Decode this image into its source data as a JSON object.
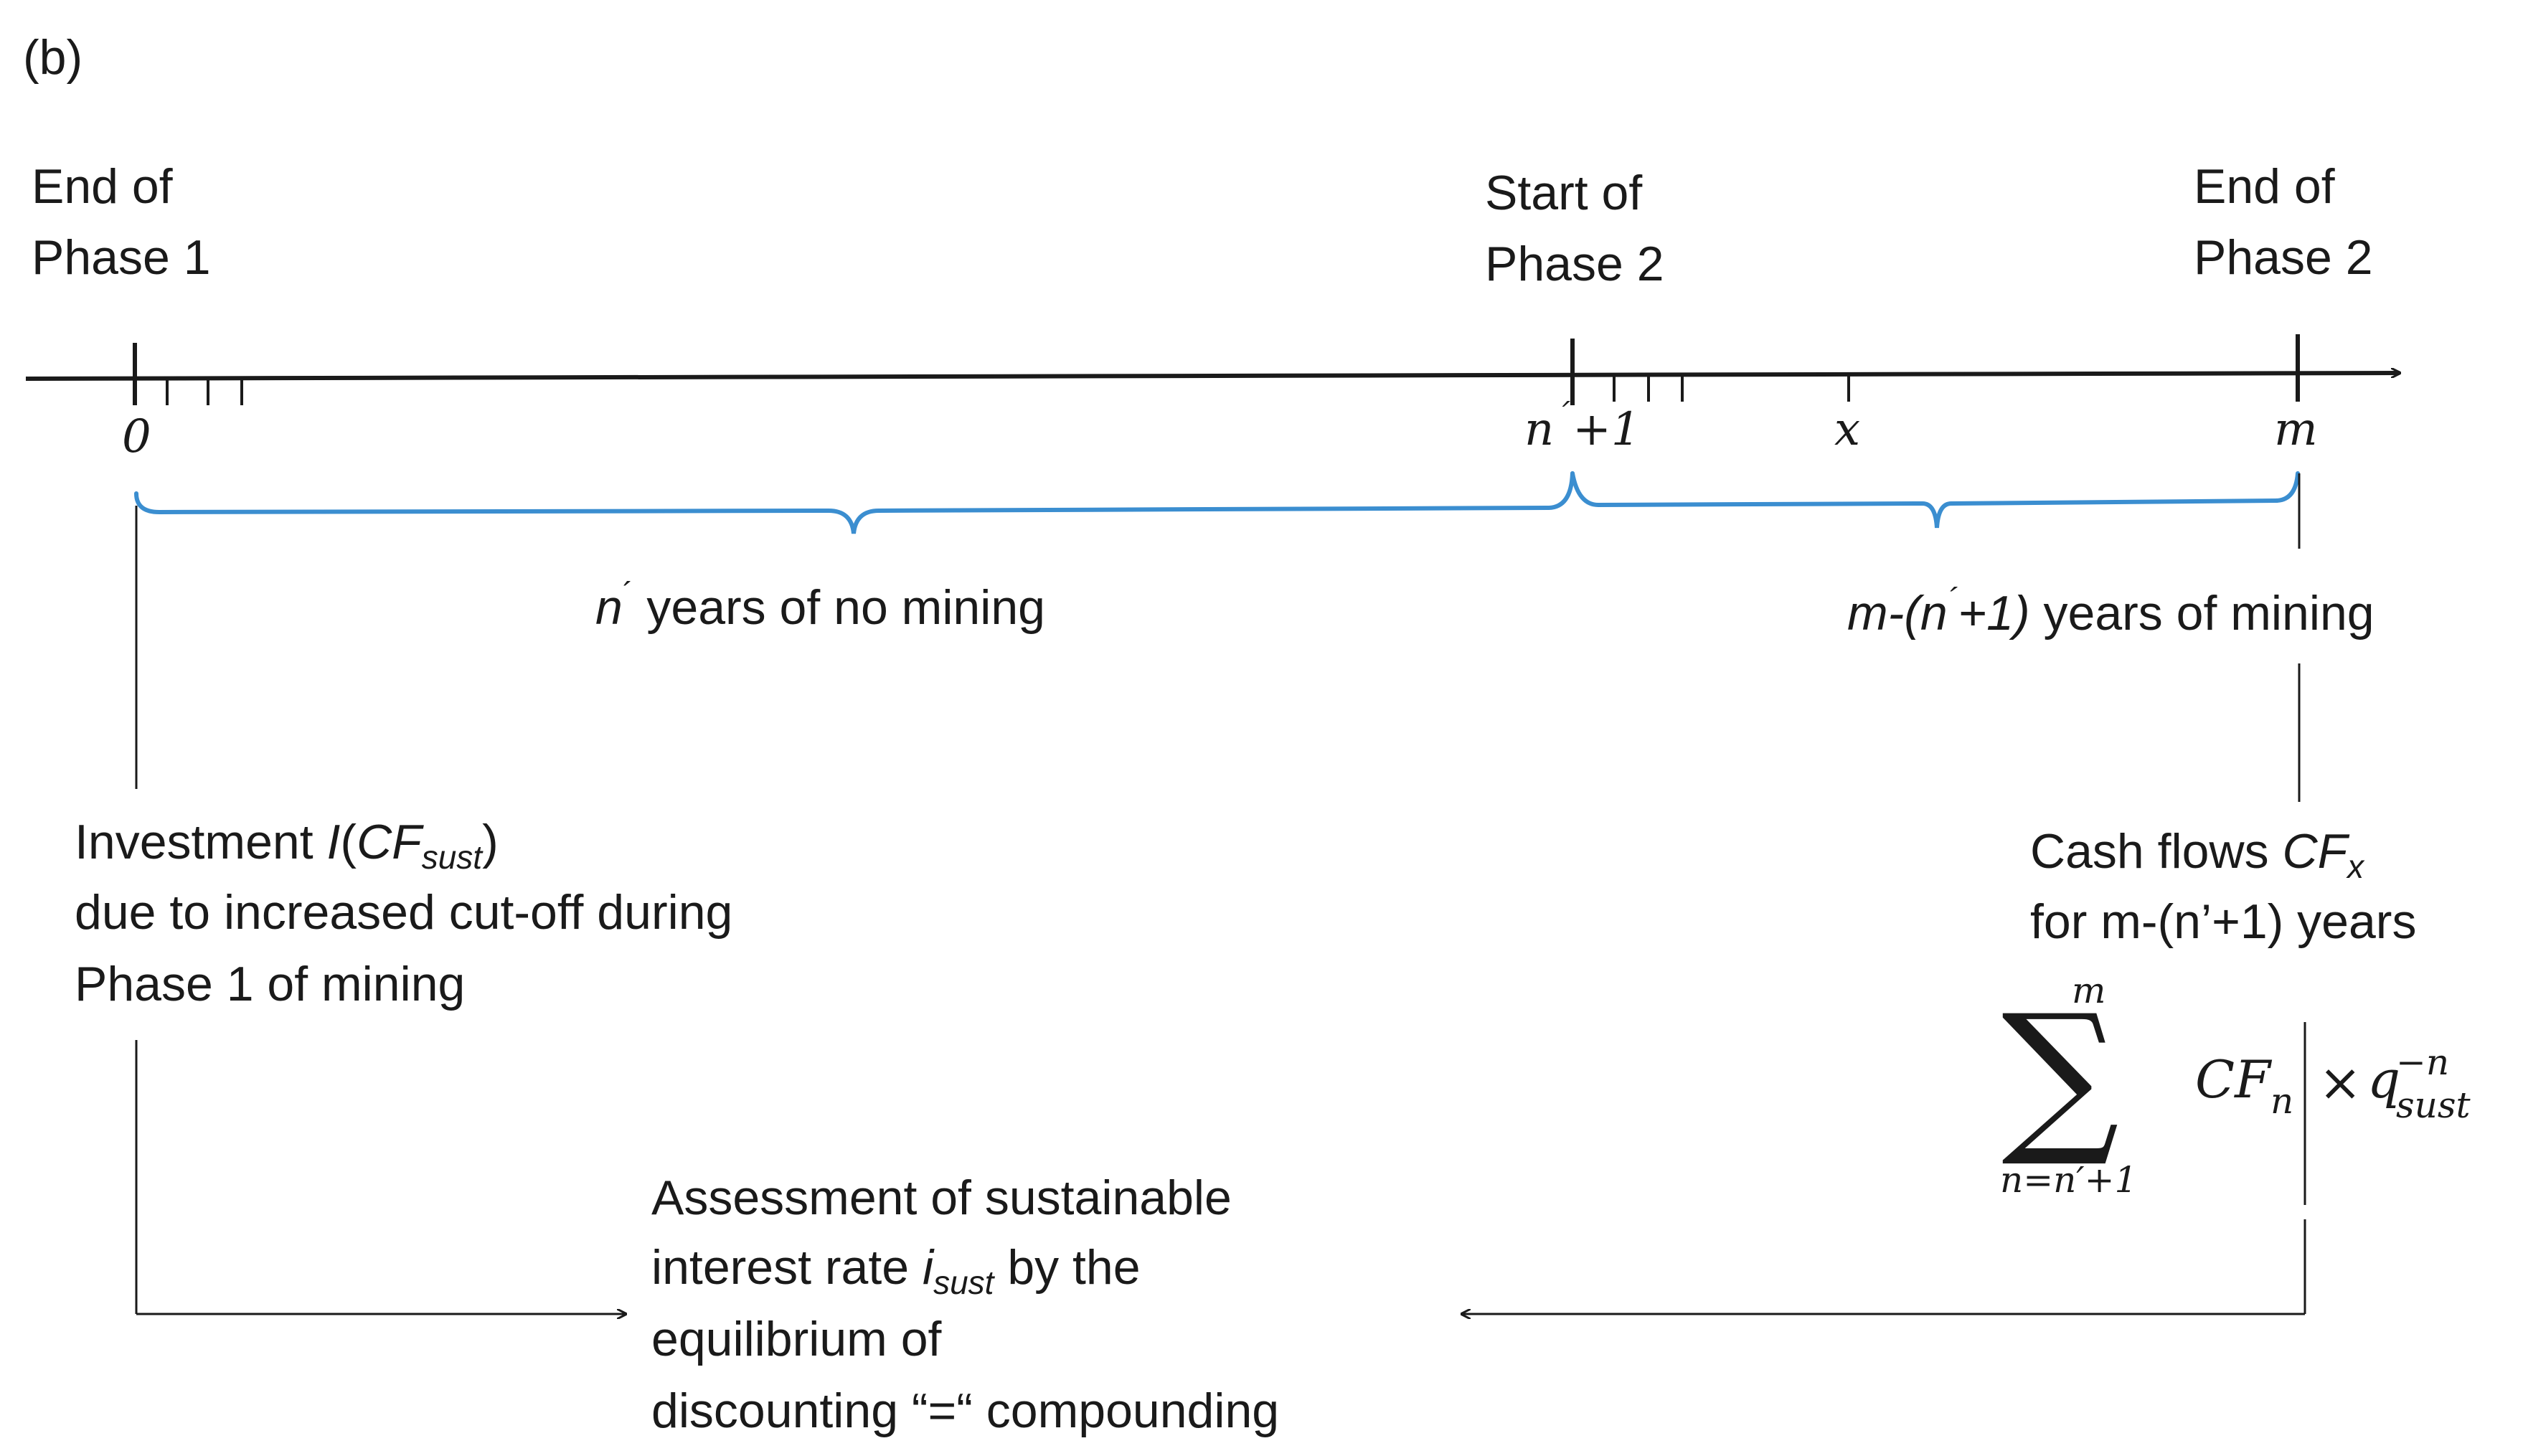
{
  "panel_label": "(b)",
  "milestones": {
    "end_phase1": [
      "End of",
      "Phase 1"
    ],
    "start_phase2": [
      "Start of",
      "Phase 2"
    ],
    "end_phase2": [
      "End of",
      "Phase 2"
    ]
  },
  "axis_labels": {
    "zero": "0",
    "n_prime_sym": "n",
    "n_prime_mark": "´",
    "n_prime_suffix": "+1",
    "x": "x",
    "m": "m"
  },
  "brace_labels": {
    "no_mining_sym": "n",
    "no_mining_mark": "´",
    "no_mining_text": " years of no mining",
    "mining_prefix": "m-(n",
    "mining_mark": "´",
    "mining_suffix": "+1)",
    "mining_text": " years of mining"
  },
  "investment": {
    "line1_text": "Investment ",
    "line1_I": "I",
    "line1_paren_open": "(",
    "line1_CF": "CF",
    "line1_sub": "sust",
    "line1_paren_close": ")",
    "line2": "due to increased cut-off during",
    "line3": "Phase 1 of mining"
  },
  "cashflows": {
    "line1_text": "Cash flows ",
    "line1_CF": "CF",
    "line1_sub": "x",
    "line2": "for m-(n’+1) years"
  },
  "formula": {
    "sigma": "∑",
    "upper": "m",
    "lower": "n=n′+1",
    "term": "CF",
    "term_sub": "n",
    "times": "×",
    "q": "q",
    "q_sub": "sust",
    "q_sup": "−n"
  },
  "assessment": {
    "line1": "Assessment of sustainable",
    "line2_text": "interest rate ",
    "line2_i": "i",
    "line2_sub": "sust",
    "line2_rest": " by the",
    "line3": "equilibrium of",
    "line4": "discounting “=“ compounding"
  },
  "colors": {
    "ink": "#1a1a1a",
    "brace": "#3b8ed0"
  }
}
